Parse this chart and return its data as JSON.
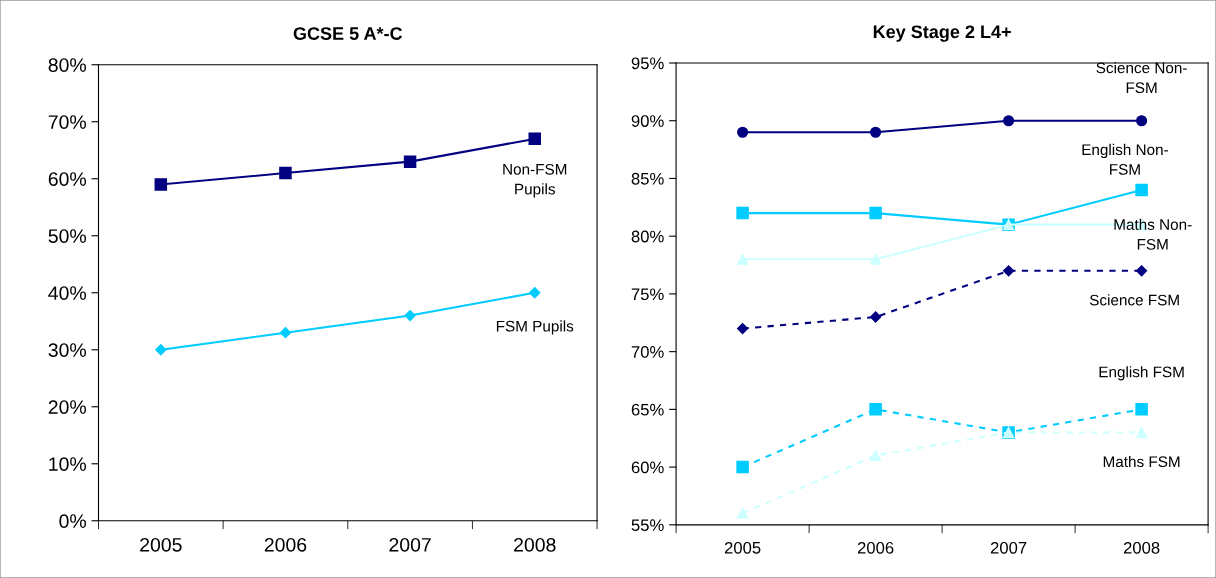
{
  "chart_data": [
    {
      "type": "line",
      "title": "GCSE 5 A*-C",
      "categories": [
        "2005",
        "2006",
        "2007",
        "2008"
      ],
      "ylim": [
        0,
        80
      ],
      "yticks": [
        {
          "value": 0,
          "label": "0%"
        },
        {
          "value": 10,
          "label": "10%"
        },
        {
          "value": 20,
          "label": "20%"
        },
        {
          "value": 30,
          "label": "30%"
        },
        {
          "value": 40,
          "label": "40%"
        },
        {
          "value": 50,
          "label": "50%"
        },
        {
          "value": 60,
          "label": "60%"
        },
        {
          "value": 70,
          "label": "70%"
        },
        {
          "value": 80,
          "label": "80%"
        }
      ],
      "grid": false,
      "legend": false,
      "series": [
        {
          "name": "Non-FSM\nPupils",
          "color": "#000080",
          "marker": "square",
          "line_style": "solid",
          "values": [
            59,
            61,
            63,
            67
          ]
        },
        {
          "name": "FSM Pupils",
          "color": "#00ccff",
          "marker": "diamond",
          "line_style": "solid",
          "values": [
            30,
            33,
            36,
            40
          ]
        }
      ]
    },
    {
      "type": "line",
      "title": "Key Stage 2 L4+",
      "categories": [
        "2005",
        "2006",
        "2007",
        "2008"
      ],
      "ylim": [
        55,
        95
      ],
      "yticks": [
        {
          "value": 55,
          "label": "55%"
        },
        {
          "value": 60,
          "label": "60%"
        },
        {
          "value": 65,
          "label": "65%"
        },
        {
          "value": 70,
          "label": "70%"
        },
        {
          "value": 75,
          "label": "75%"
        },
        {
          "value": 80,
          "label": "80%"
        },
        {
          "value": 85,
          "label": "85%"
        },
        {
          "value": 90,
          "label": "90%"
        },
        {
          "value": 95,
          "label": "95%"
        }
      ],
      "grid": false,
      "legend": false,
      "series": [
        {
          "name": "Science Non-\nFSM",
          "color": "#000080",
          "marker": "circle",
          "line_style": "solid",
          "values": [
            89,
            89,
            90,
            90
          ]
        },
        {
          "name": "English Non-\nFSM",
          "color": "#00ccff",
          "marker": "square",
          "line_style": "solid",
          "values": [
            82,
            82,
            81,
            84
          ]
        },
        {
          "name": "Maths Non-\nFSM",
          "color": "#ccffff",
          "marker": "triangle",
          "line_style": "solid",
          "values": [
            78,
            78,
            81,
            81
          ]
        },
        {
          "name": "Science FSM",
          "color": "#000080",
          "marker": "diamond",
          "line_style": "dashed",
          "values": [
            72,
            73,
            77,
            77
          ]
        },
        {
          "name": "English FSM",
          "color": "#00ccff",
          "marker": "square",
          "line_style": "dashed",
          "values": [
            60,
            65,
            63,
            65
          ]
        },
        {
          "name": "Maths FSM",
          "color": "#ccffff",
          "marker": "triangle",
          "line_style": "dashed",
          "values": [
            56,
            61,
            63,
            63
          ]
        }
      ]
    }
  ]
}
